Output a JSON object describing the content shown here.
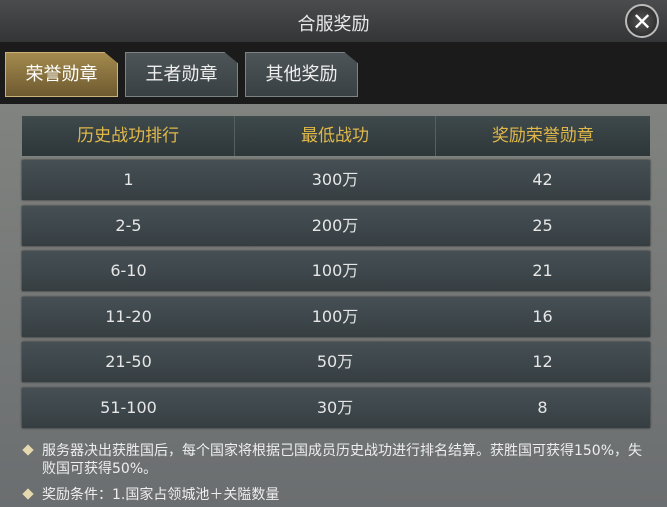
{
  "title": "合服奖励",
  "tabs": [
    {
      "label": "荣誉勋章",
      "active": true
    },
    {
      "label": "王者勋章",
      "active": false
    },
    {
      "label": "其他奖励",
      "active": false
    }
  ],
  "table": {
    "headers": [
      "历史战功排行",
      "最低战功",
      "奖励荣誉勋章"
    ],
    "rows": [
      [
        "1",
        "300万",
        "42"
      ],
      [
        "2-5",
        "200万",
        "25"
      ],
      [
        "6-10",
        "100万",
        "21"
      ],
      [
        "11-20",
        "100万",
        "16"
      ],
      [
        "21-50",
        "50万",
        "12"
      ],
      [
        "51-100",
        "30万",
        "8"
      ]
    ]
  },
  "notes": [
    "服务器决出获胜国后，每个国家将根据己国成员历史战功进行排名结算。获胜国可获得150%，失败国可获得50%。",
    "奖励条件：1.国家占领城池＋关隘数量"
  ],
  "colors": {
    "accent": "#e0b84a",
    "active_tab": "#a48a4e"
  }
}
